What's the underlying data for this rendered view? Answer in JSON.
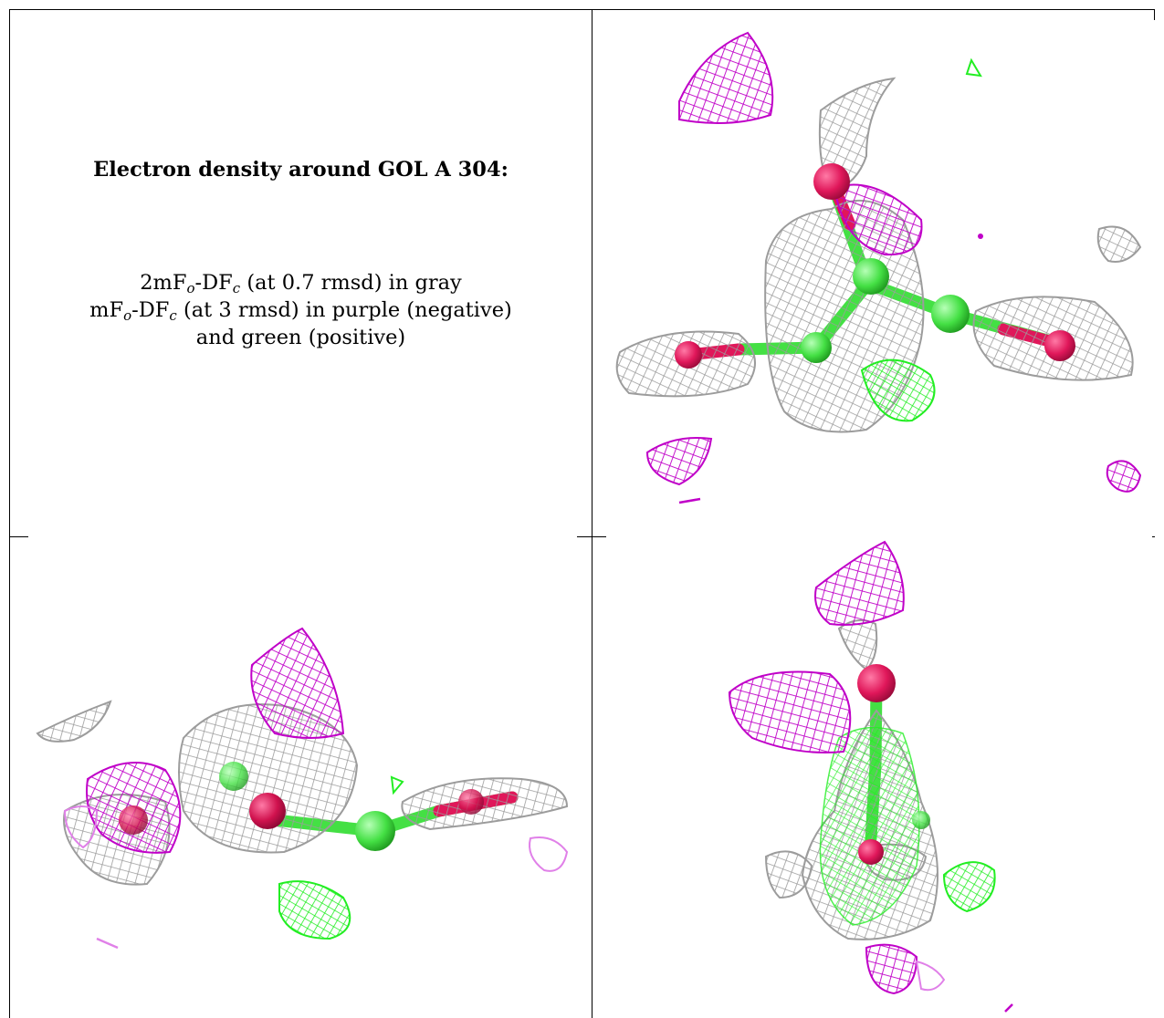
{
  "caption": {
    "title": "Electron density around GOL A 304:",
    "line1": {
      "prefix": "2mF",
      "sub1": "o",
      "mid": "-DF",
      "sub2": "c",
      "suffix": " (at 0.7 rmsd) in gray"
    },
    "line2": {
      "prefix": "mF",
      "sub1": "o",
      "mid": "-DF",
      "sub2": "c",
      "suffix": " (at 3 rmsd) in purple (negative)"
    },
    "line3": "and green (positive)"
  },
  "colors": {
    "density_2fofc": "#9c9c9c",
    "difference_negative": "#c000c8",
    "difference_positive": "#33ee33",
    "carbon": "#44e044",
    "oxygen": "#e0175a",
    "border": "#000000"
  },
  "panels": [
    {
      "name": "caption-panel"
    },
    {
      "name": "density-view-1"
    },
    {
      "name": "density-view-2"
    },
    {
      "name": "density-view-3"
    }
  ]
}
